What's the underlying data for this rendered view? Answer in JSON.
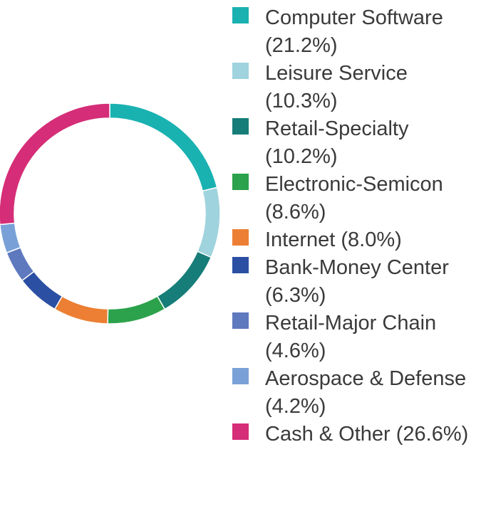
{
  "chart_data": {
    "type": "pie",
    "variant": "donut",
    "legend_position": "right",
    "slices": [
      {
        "label": "Computer Software (21.2%)",
        "value": 21.2,
        "color": "#1ab1b1"
      },
      {
        "label": "Leisure Service (10.3%)",
        "value": 10.3,
        "color": "#9fd3dd"
      },
      {
        "label": "Retail-Specialty (10.2%)",
        "value": 10.2,
        "color": "#167d78"
      },
      {
        "label": "Electronic-Semicon (8.6%)",
        "value": 8.6,
        "color": "#2ba24b"
      },
      {
        "label": "Internet (8.0%)",
        "value": 8.0,
        "color": "#ec7f33"
      },
      {
        "label": "Bank-Money Center (6.3%)",
        "value": 6.3,
        "color": "#2b4fa3"
      },
      {
        "label": "Retail-Major Chain (4.6%)",
        "value": 4.6,
        "color": "#5f79be"
      },
      {
        "label": "Aerospace & Defense (4.2%)",
        "value": 4.2,
        "color": "#79a1d7"
      },
      {
        "label": "Cash & Other (26.6%)",
        "value": 26.6,
        "color": "#d52d77"
      }
    ]
  }
}
